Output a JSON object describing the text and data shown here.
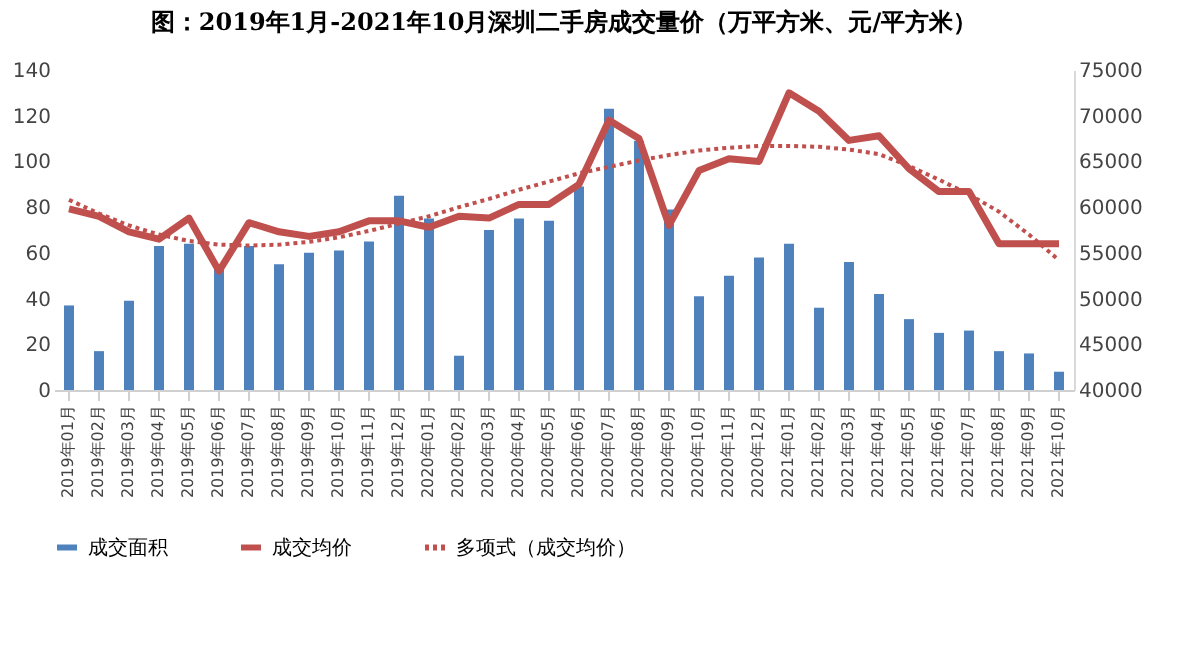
{
  "chart_data": {
    "type": "bar",
    "title": "图：2019年1月-2021年10月深圳二手房成交量价（万平方米、元/平方米）",
    "categories": [
      "2019年01月",
      "2019年02月",
      "2019年03月",
      "2019年04月",
      "2019年05月",
      "2019年06月",
      "2019年07月",
      "2019年08月",
      "2019年09月",
      "2019年10月",
      "2019年11月",
      "2019年12月",
      "2020年01月",
      "2020年02月",
      "2020年03月",
      "2020年04月",
      "2020年05月",
      "2020年06月",
      "2020年07月",
      "2020年08月",
      "2020年09月",
      "2020年10月",
      "2020年11月",
      "2020年12月",
      "2021年01月",
      "2021年02月",
      "2021年03月",
      "2021年04月",
      "2021年05月",
      "2021年06月",
      "2021年07月",
      "2021年08月",
      "2021年09月",
      "2021年10月"
    ],
    "series": [
      {
        "name": "成交面积",
        "color": "#4f81bd",
        "values": [
          37,
          17,
          39,
          63,
          64,
          53,
          63,
          55,
          60,
          61,
          65,
          85,
          75,
          15,
          70,
          75,
          74,
          89,
          123,
          109,
          79,
          41,
          50,
          58,
          64,
          36,
          56,
          42,
          31,
          25,
          26,
          17,
          16,
          8
        ]
      },
      {
        "name": "成交均价",
        "type": "line",
        "axis": "y2",
        "color": "#c0504d",
        "line_style": "solid",
        "values": [
          59800,
          59000,
          57300,
          56500,
          58800,
          53000,
          58300,
          57300,
          56800,
          57300,
          58500,
          58500,
          57800,
          59000,
          58800,
          60300,
          60300,
          62500,
          69500,
          67500,
          58000,
          64000,
          65300,
          65000,
          72500,
          70500,
          67300,
          67800,
          64200,
          61700,
          61700,
          56000,
          56000,
          56000
        ]
      },
      {
        "name": "多项式（成交均价）",
        "type": "line",
        "axis": "y2",
        "color": "#c0504d",
        "line_style": "dotted",
        "values": [
          60800,
          59300,
          58000,
          57000,
          56300,
          55900,
          55800,
          55900,
          56200,
          56700,
          57400,
          58200,
          59000,
          60000,
          60900,
          61900,
          62800,
          63700,
          64400,
          65100,
          65700,
          66200,
          66500,
          66700,
          66700,
          66600,
          66300,
          65800,
          64500,
          63000,
          61400,
          59500,
          57000,
          54200
        ]
      }
    ],
    "ylim": [
      0,
      140
    ],
    "yticks": [
      0,
      20,
      40,
      60,
      80,
      100,
      120,
      140
    ],
    "y2lim": [
      40000,
      75000
    ],
    "y2ticks": [
      40000,
      45000,
      50000,
      55000,
      60000,
      65000,
      70000,
      75000
    ],
    "grid": false,
    "legend": "bottom"
  }
}
